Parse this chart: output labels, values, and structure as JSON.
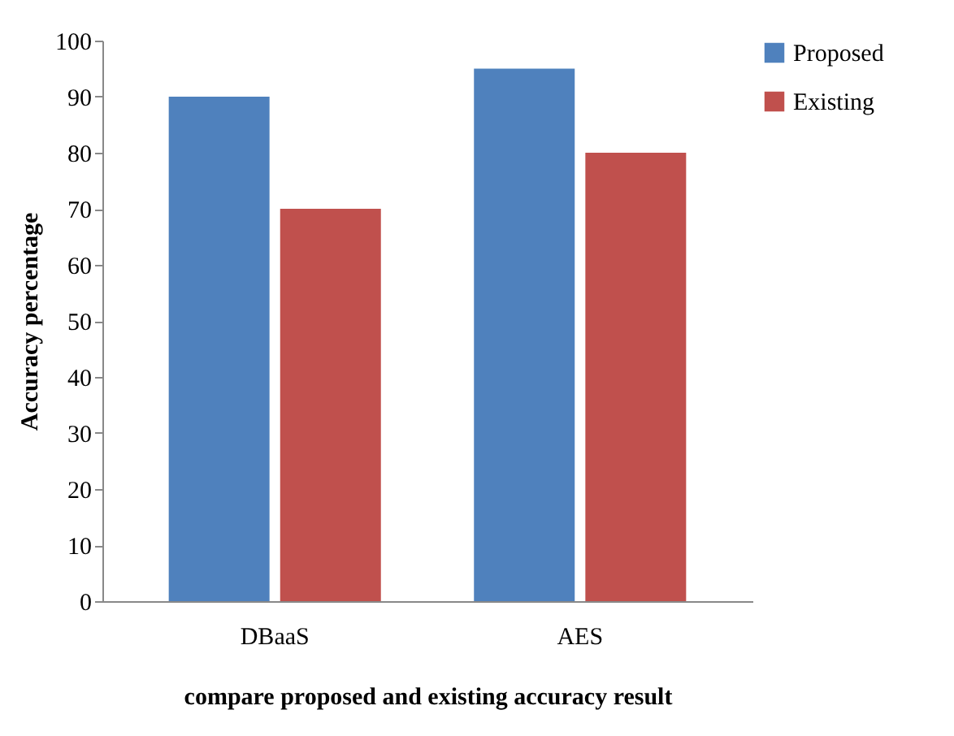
{
  "chart_data": {
    "type": "bar",
    "xlabel": "compare proposed and existing accuracy result",
    "ylabel": "Accuracy percentage",
    "categories": [
      "DBaaS",
      "AES"
    ],
    "series": [
      {
        "name": "Proposed",
        "color": "#4f81bd",
        "values": [
          90,
          95
        ]
      },
      {
        "name": "Existing",
        "color": "#c0504d",
        "values": [
          70,
          80
        ]
      }
    ],
    "ylim": [
      0,
      100
    ],
    "yticks": [
      0,
      10,
      20,
      30,
      40,
      50,
      60,
      70,
      80,
      90,
      100
    ],
    "grid": false,
    "legend": "right"
  }
}
